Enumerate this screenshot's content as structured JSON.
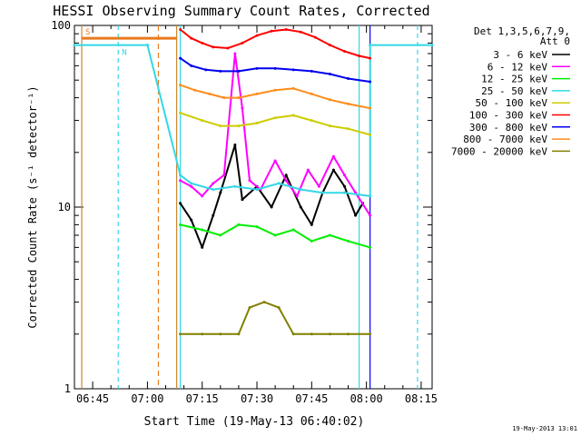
{
  "chart_data": {
    "type": "line",
    "title": "HESSI Observing Summary Count Rates, Corrected",
    "xlabel": "Start Time (19-May-13 06:40:02)",
    "ylabel": "Corrected Count Rate (s⁻¹ detector⁻¹)",
    "yscale": "log",
    "ylim": [
      1,
      100
    ],
    "xlim": [
      "06:40",
      "08:18"
    ],
    "x_ticks": [
      "06:45",
      "07:00",
      "07:15",
      "07:30",
      "07:45",
      "08:00",
      "08:15"
    ],
    "y_ticks": [
      "1",
      "10",
      "100"
    ],
    "grid": false,
    "legend_title": "Det 1,3,5,6,7,9,\nAtt 0",
    "legend_position": "right",
    "footer": "19-May-2013 13:01",
    "annotations": [
      {
        "text": "S",
        "color": "#e87a1c"
      },
      {
        "text": "N",
        "color": "#33d8e6"
      }
    ],
    "series": [
      {
        "name": "3 - 6 keV",
        "color": "#000000",
        "x": [
          "07:09",
          "07:12",
          "07:15",
          "07:18",
          "07:20",
          "07:24",
          "07:26",
          "07:30",
          "07:34",
          "07:38",
          "07:42",
          "07:45",
          "07:48",
          "07:51",
          "07:54",
          "07:57",
          "07:59"
        ],
        "values": [
          10.5,
          8.5,
          6.0,
          9.0,
          12.0,
          22.0,
          11.0,
          13.0,
          10.0,
          15.0,
          10.0,
          8.0,
          12.0,
          16.0,
          13.0,
          9.0,
          10.5
        ]
      },
      {
        "name": "6 - 12 keV",
        "color": "#ff00ff",
        "x": [
          "07:09",
          "07:12",
          "07:15",
          "07:18",
          "07:21",
          "07:24",
          "07:26",
          "07:28",
          "07:31",
          "07:35",
          "07:38",
          "07:41",
          "07:44",
          "07:47",
          "07:51",
          "07:54",
          "07:57",
          "08:01"
        ],
        "values": [
          14.0,
          13.0,
          11.5,
          13.5,
          15.0,
          70.0,
          35.0,
          14.0,
          12.5,
          18.0,
          14.0,
          11.5,
          16.0,
          13.0,
          19.0,
          15.0,
          12.0,
          9.0
        ]
      },
      {
        "name": "12 - 25 keV",
        "color": "#00ee00",
        "x": [
          "07:09",
          "07:15",
          "07:20",
          "07:25",
          "07:30",
          "07:35",
          "07:40",
          "07:45",
          "07:50",
          "07:55",
          "08:01"
        ],
        "values": [
          8.0,
          7.5,
          7.0,
          8.0,
          7.8,
          7.0,
          7.5,
          6.5,
          7.0,
          6.5,
          6.0
        ]
      },
      {
        "name": "25 - 50 keV",
        "color": "#33d8e6",
        "x": [
          "06:40",
          "07:00",
          "07:00",
          "07:09",
          "07:12",
          "07:18",
          "07:24",
          "07:30",
          "07:36",
          "07:42",
          "07:48",
          "07:54",
          "08:01",
          "08:01",
          "08:18"
        ],
        "values": [
          78,
          78,
          78,
          15.0,
          13.5,
          12.5,
          13.0,
          12.5,
          13.5,
          12.5,
          12.0,
          12.0,
          11.5,
          78,
          78
        ]
      },
      {
        "name": "50 - 100 keV",
        "color": "#cccc00",
        "x": [
          "07:09",
          "07:15",
          "07:20",
          "07:25",
          "07:30",
          "07:35",
          "07:40",
          "07:45",
          "07:50",
          "07:55",
          "08:01"
        ],
        "values": [
          33,
          30,
          28,
          28,
          29,
          31,
          32,
          30,
          28,
          27,
          25
        ]
      },
      {
        "name": "100 - 300 keV",
        "color": "#ff0000",
        "x": [
          "07:09",
          "07:12",
          "07:15",
          "07:18",
          "07:22",
          "07:26",
          "07:30",
          "07:34",
          "07:38",
          "07:42",
          "07:46",
          "07:50",
          "07:54",
          "07:58",
          "08:01"
        ],
        "values": [
          95,
          85,
          80,
          76,
          75,
          80,
          88,
          93,
          95,
          92,
          86,
          78,
          72,
          68,
          66
        ]
      },
      {
        "name": "300 - 800 keV",
        "color": "#0000ee",
        "x": [
          "07:09",
          "07:12",
          "07:16",
          "07:20",
          "07:25",
          "07:30",
          "07:35",
          "07:40",
          "07:45",
          "07:50",
          "07:55",
          "08:01"
        ],
        "values": [
          66,
          60,
          57,
          56,
          56,
          58,
          58,
          57,
          56,
          54,
          51,
          49
        ]
      },
      {
        "name": "800 - 7000 keV",
        "color": "#ff8c1a",
        "x": [
          "07:09",
          "07:13",
          "07:17",
          "07:21",
          "07:25",
          "07:30",
          "07:35",
          "07:40",
          "07:45",
          "07:50",
          "07:55",
          "08:01"
        ],
        "values": [
          47,
          44,
          42,
          40,
          40,
          42,
          44,
          45,
          42,
          39,
          37,
          35
        ]
      },
      {
        "name": "7000 - 20000 keV",
        "color": "#808000",
        "x": [
          "07:09",
          "07:15",
          "07:20",
          "07:25",
          "07:28",
          "07:32",
          "07:36",
          "07:40",
          "07:45",
          "07:50",
          "07:55",
          "08:01"
        ],
        "values": [
          2.0,
          2.0,
          2.0,
          2.0,
          2.8,
          3.0,
          2.8,
          2.0,
          2.0,
          2.0,
          2.0,
          2.0
        ]
      }
    ]
  }
}
